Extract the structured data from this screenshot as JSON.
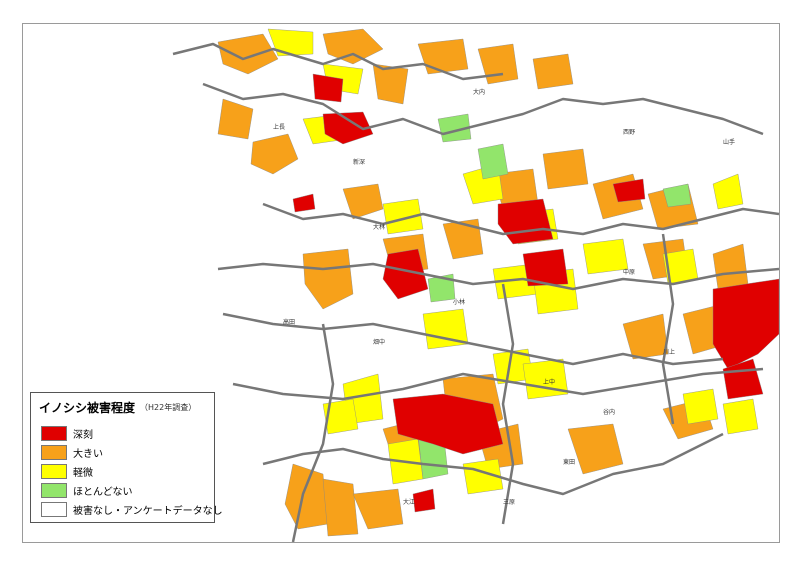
{
  "map": {
    "colors": {
      "severe": "#e00000",
      "large": "#f7a11a",
      "minor": "#ffff00",
      "almost_none": "#92e56b",
      "none": "#ffffff",
      "boundary": "#777777",
      "district_line": "#bbbbbb"
    }
  },
  "legend": {
    "title": "イノシシ被害程度",
    "survey": "（H22年調査）",
    "items": [
      {
        "label": "深刻",
        "color": "#e00000"
      },
      {
        "label": "大きい",
        "color": "#f7a11a"
      },
      {
        "label": "軽微",
        "color": "#ffff00"
      },
      {
        "label": "ほとんどない",
        "color": "#92e56b"
      },
      {
        "label": "被害なし・アンケートデータなし",
        "color": "#ffffff"
      }
    ]
  }
}
